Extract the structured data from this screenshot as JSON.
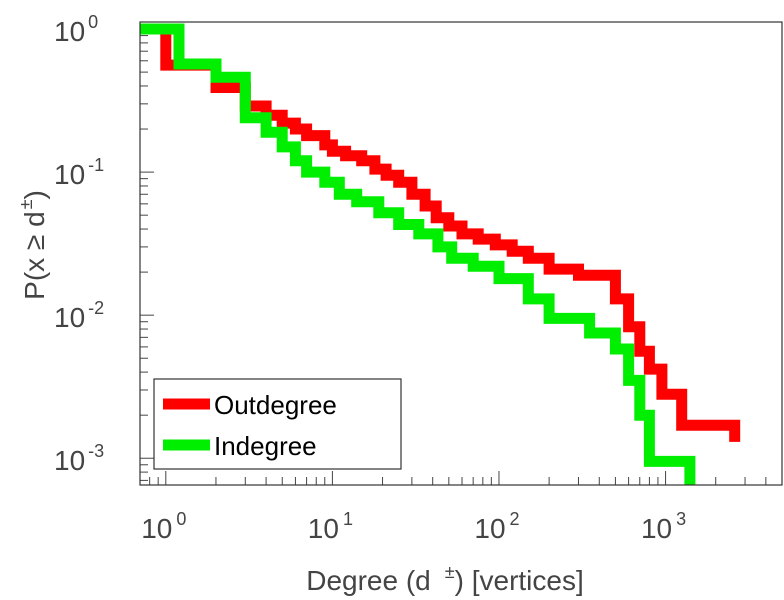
{
  "chart_data": {
    "type": "line",
    "x_scale": "log",
    "y_scale": "log",
    "xlim": [
      0.7,
      5000
    ],
    "ylim": [
      0.00065,
      1.12
    ],
    "xlabel": {
      "pre": "Degree (d",
      "sup": "±",
      "post": ") [vertices]"
    },
    "ylabel": {
      "pre": "P(x ≥ d",
      "sup": "±",
      "post": ")"
    },
    "x_ticks": [
      {
        "value": 1,
        "base": "10",
        "exp": "0"
      },
      {
        "value": 10,
        "base": "10",
        "exp": "1"
      },
      {
        "value": 100,
        "base": "10",
        "exp": "2"
      },
      {
        "value": 1000,
        "base": "10",
        "exp": "3"
      }
    ],
    "y_ticks": [
      {
        "value": 1,
        "base": "10",
        "exp": "0"
      },
      {
        "value": 0.1,
        "base": "10",
        "exp": "-1"
      },
      {
        "value": 0.01,
        "base": "10",
        "exp": "-2"
      },
      {
        "value": 0.001,
        "base": "10",
        "exp": "-3"
      }
    ],
    "grid": false,
    "legend_position": "bottom-left",
    "series": [
      {
        "name": "Outdegree",
        "color": "#ff0000",
        "points": [
          [
            0.7,
            1.0
          ],
          [
            1,
            1.0
          ],
          [
            1,
            0.56
          ],
          [
            2,
            0.56
          ],
          [
            2,
            0.39
          ],
          [
            3,
            0.39
          ],
          [
            3,
            0.29
          ],
          [
            4,
            0.29
          ],
          [
            4,
            0.25
          ],
          [
            5,
            0.25
          ],
          [
            5,
            0.22
          ],
          [
            6,
            0.22
          ],
          [
            6,
            0.2
          ],
          [
            7,
            0.2
          ],
          [
            7,
            0.18
          ],
          [
            9,
            0.18
          ],
          [
            9,
            0.155
          ],
          [
            10,
            0.155
          ],
          [
            10,
            0.14
          ],
          [
            12,
            0.14
          ],
          [
            12,
            0.13
          ],
          [
            15,
            0.13
          ],
          [
            15,
            0.12
          ],
          [
            18,
            0.12
          ],
          [
            18,
            0.105
          ],
          [
            21,
            0.105
          ],
          [
            21,
            0.095
          ],
          [
            25,
            0.095
          ],
          [
            25,
            0.085
          ],
          [
            30,
            0.085
          ],
          [
            30,
            0.07
          ],
          [
            36,
            0.07
          ],
          [
            36,
            0.058
          ],
          [
            42,
            0.058
          ],
          [
            42,
            0.048
          ],
          [
            50,
            0.048
          ],
          [
            50,
            0.042
          ],
          [
            60,
            0.042
          ],
          [
            60,
            0.037
          ],
          [
            75,
            0.037
          ],
          [
            75,
            0.034
          ],
          [
            95,
            0.034
          ],
          [
            95,
            0.031
          ],
          [
            120,
            0.031
          ],
          [
            120,
            0.028
          ],
          [
            150,
            0.028
          ],
          [
            150,
            0.025
          ],
          [
            200,
            0.025
          ],
          [
            200,
            0.021
          ],
          [
            300,
            0.021
          ],
          [
            300,
            0.019
          ],
          [
            500,
            0.019
          ],
          [
            500,
            0.013
          ],
          [
            600,
            0.013
          ],
          [
            600,
            0.0083
          ],
          [
            700,
            0.0083
          ],
          [
            700,
            0.0056
          ],
          [
            800,
            0.0056
          ],
          [
            800,
            0.0042
          ],
          [
            950,
            0.0042
          ],
          [
            950,
            0.0028
          ],
          [
            1250,
            0.0028
          ],
          [
            1250,
            0.0017
          ],
          [
            2600,
            0.0017
          ],
          [
            2600,
            0.0013
          ]
        ]
      },
      {
        "name": "Indegree",
        "color": "#00ee00",
        "points": [
          [
            0.7,
            1.0
          ],
          [
            1.2,
            1.0
          ],
          [
            1.2,
            0.57
          ],
          [
            2,
            0.57
          ],
          [
            2,
            0.46
          ],
          [
            3,
            0.46
          ],
          [
            3,
            0.24
          ],
          [
            4,
            0.24
          ],
          [
            4,
            0.19
          ],
          [
            5,
            0.19
          ],
          [
            5,
            0.15
          ],
          [
            6,
            0.15
          ],
          [
            6,
            0.12
          ],
          [
            7,
            0.12
          ],
          [
            7,
            0.1
          ],
          [
            9,
            0.1
          ],
          [
            9,
            0.085
          ],
          [
            11,
            0.085
          ],
          [
            11,
            0.07
          ],
          [
            14,
            0.07
          ],
          [
            14,
            0.062
          ],
          [
            19,
            0.062
          ],
          [
            19,
            0.052
          ],
          [
            25,
            0.052
          ],
          [
            25,
            0.043
          ],
          [
            33,
            0.043
          ],
          [
            33,
            0.037
          ],
          [
            43,
            0.037
          ],
          [
            43,
            0.03
          ],
          [
            52,
            0.03
          ],
          [
            52,
            0.025
          ],
          [
            70,
            0.025
          ],
          [
            70,
            0.022
          ],
          [
            100,
            0.022
          ],
          [
            100,
            0.018
          ],
          [
            150,
            0.018
          ],
          [
            150,
            0.013
          ],
          [
            200,
            0.013
          ],
          [
            200,
            0.0095
          ],
          [
            350,
            0.0095
          ],
          [
            350,
            0.0075
          ],
          [
            500,
            0.0075
          ],
          [
            500,
            0.0058
          ],
          [
            600,
            0.0058
          ],
          [
            600,
            0.0035
          ],
          [
            700,
            0.0035
          ],
          [
            700,
            0.002
          ],
          [
            800,
            0.002
          ],
          [
            800,
            0.00095
          ],
          [
            1400,
            0.00095
          ],
          [
            1400,
            0.00065
          ]
        ]
      }
    ]
  }
}
